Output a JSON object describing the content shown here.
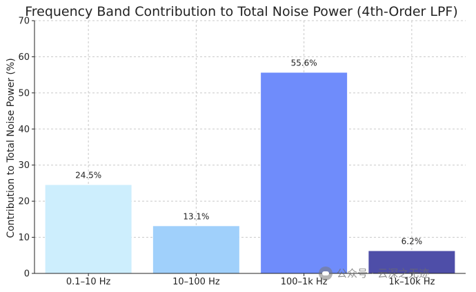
{
  "chart_data": {
    "type": "bar",
    "title": "Frequency Band Contribution to Total Noise Power (4th-Order LPF)",
    "xlabel": "",
    "ylabel": "Contribution to Total Noise Power (%)",
    "categories": [
      "0.1–10 Hz",
      "10–100 Hz",
      "100–1k Hz",
      "1k–10k Hz"
    ],
    "values": [
      24.5,
      13.1,
      55.6,
      6.2
    ],
    "value_labels": [
      "24.5%",
      "13.1%",
      "55.6%",
      "6.2%"
    ],
    "colors": [
      "#cdeefd",
      "#a0d0fb",
      "#6f8cfb",
      "#4e4ea8"
    ],
    "ylim": [
      0,
      70
    ],
    "yticks": [
      0,
      10,
      20,
      30,
      40,
      50,
      60,
      70
    ],
    "grid": true
  },
  "watermark": {
    "text": "公众号 · 云深之无迹",
    "icon": "wechat-icon"
  }
}
